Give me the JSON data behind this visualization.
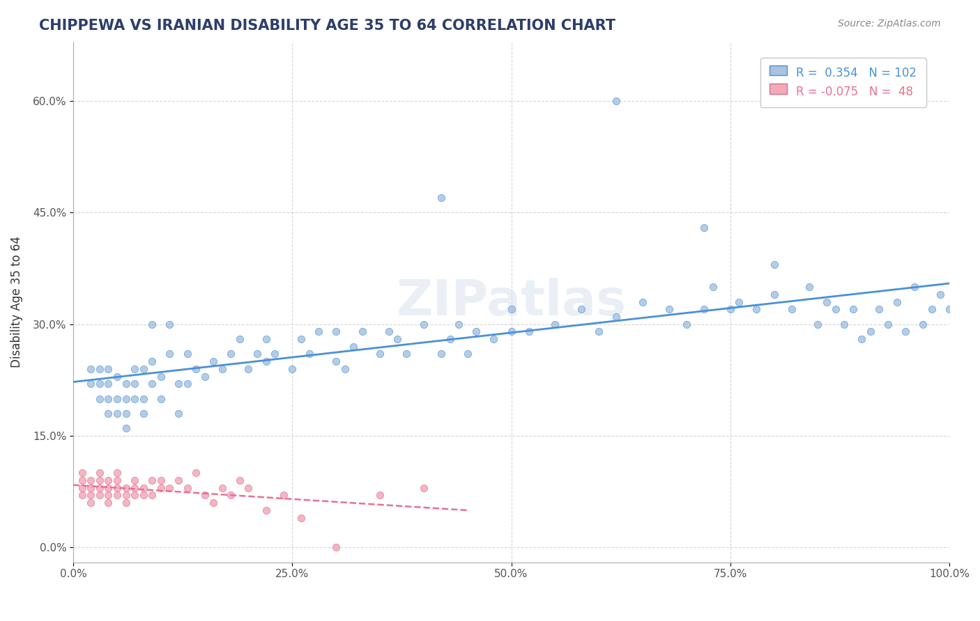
{
  "title": "CHIPPEWA VS IRANIAN DISABILITY AGE 35 TO 64 CORRELATION CHART",
  "source": "Source: ZipAtlas.com",
  "xlabel": "",
  "ylabel": "Disability Age 35 to 64",
  "xlim": [
    0,
    1.0
  ],
  "ylim": [
    -0.02,
    0.68
  ],
  "xticks": [
    0.0,
    0.25,
    0.5,
    0.75,
    1.0
  ],
  "xticklabels": [
    "0.0%",
    "25.0%",
    "50.0%",
    "75.0%",
    "100.0%"
  ],
  "yticks": [
    0.0,
    0.15,
    0.3,
    0.45,
    0.6
  ],
  "yticklabels": [
    "0.0%",
    "15.0%",
    "30.0%",
    "45.0%",
    "60.0%"
  ],
  "chippewa_color": "#a8c4e0",
  "iranian_color": "#f4a8b8",
  "chippewa_line_color": "#4a90d9",
  "iranian_line_color": "#e87090",
  "legend_r1": "R =  0.354   N = 102",
  "legend_r2": "R = -0.075   N =  48",
  "background_color": "#ffffff",
  "grid_color": "#cccccc",
  "watermark": "ZIPatlas",
  "title_color": "#2c3e6b",
  "chippewa_x": [
    0.02,
    0.02,
    0.03,
    0.03,
    0.03,
    0.04,
    0.04,
    0.04,
    0.04,
    0.05,
    0.05,
    0.05,
    0.06,
    0.06,
    0.06,
    0.06,
    0.07,
    0.07,
    0.07,
    0.08,
    0.08,
    0.08,
    0.09,
    0.09,
    0.09,
    0.1,
    0.1,
    0.11,
    0.11,
    0.12,
    0.12,
    0.13,
    0.13,
    0.14,
    0.15,
    0.16,
    0.17,
    0.18,
    0.19,
    0.2,
    0.21,
    0.22,
    0.22,
    0.23,
    0.25,
    0.26,
    0.27,
    0.28,
    0.3,
    0.3,
    0.31,
    0.32,
    0.33,
    0.35,
    0.36,
    0.37,
    0.38,
    0.4,
    0.42,
    0.43,
    0.44,
    0.45,
    0.46,
    0.48,
    0.5,
    0.5,
    0.52,
    0.55,
    0.58,
    0.6,
    0.62,
    0.65,
    0.68,
    0.7,
    0.72,
    0.73,
    0.75,
    0.76,
    0.78,
    0.8,
    0.82,
    0.84,
    0.85,
    0.86,
    0.87,
    0.88,
    0.89,
    0.9,
    0.91,
    0.92,
    0.93,
    0.94,
    0.95,
    0.96,
    0.97,
    0.98,
    0.99,
    1.0,
    0.62,
    0.42,
    0.72,
    0.8
  ],
  "chippewa_y": [
    0.22,
    0.24,
    0.2,
    0.22,
    0.24,
    0.2,
    0.22,
    0.18,
    0.24,
    0.18,
    0.2,
    0.23,
    0.16,
    0.18,
    0.2,
    0.22,
    0.2,
    0.22,
    0.24,
    0.18,
    0.2,
    0.24,
    0.22,
    0.25,
    0.3,
    0.2,
    0.23,
    0.26,
    0.3,
    0.18,
    0.22,
    0.22,
    0.26,
    0.24,
    0.23,
    0.25,
    0.24,
    0.26,
    0.28,
    0.24,
    0.26,
    0.28,
    0.25,
    0.26,
    0.24,
    0.28,
    0.26,
    0.29,
    0.25,
    0.29,
    0.24,
    0.27,
    0.29,
    0.26,
    0.29,
    0.28,
    0.26,
    0.3,
    0.26,
    0.28,
    0.3,
    0.26,
    0.29,
    0.28,
    0.29,
    0.32,
    0.29,
    0.3,
    0.32,
    0.29,
    0.31,
    0.33,
    0.32,
    0.3,
    0.32,
    0.35,
    0.32,
    0.33,
    0.32,
    0.34,
    0.32,
    0.35,
    0.3,
    0.33,
    0.32,
    0.3,
    0.32,
    0.28,
    0.29,
    0.32,
    0.3,
    0.33,
    0.29,
    0.35,
    0.3,
    0.32,
    0.34,
    0.32,
    0.6,
    0.47,
    0.43,
    0.38
  ],
  "iranian_x": [
    0.01,
    0.01,
    0.01,
    0.01,
    0.02,
    0.02,
    0.02,
    0.02,
    0.03,
    0.03,
    0.03,
    0.03,
    0.04,
    0.04,
    0.04,
    0.04,
    0.05,
    0.05,
    0.05,
    0.05,
    0.06,
    0.06,
    0.06,
    0.07,
    0.07,
    0.07,
    0.08,
    0.08,
    0.09,
    0.09,
    0.1,
    0.1,
    0.11,
    0.12,
    0.13,
    0.14,
    0.15,
    0.16,
    0.17,
    0.18,
    0.19,
    0.2,
    0.22,
    0.24,
    0.26,
    0.3,
    0.35,
    0.4
  ],
  "iranian_y": [
    0.07,
    0.08,
    0.09,
    0.1,
    0.06,
    0.07,
    0.08,
    0.09,
    0.07,
    0.08,
    0.09,
    0.1,
    0.06,
    0.07,
    0.08,
    0.09,
    0.07,
    0.08,
    0.09,
    0.1,
    0.06,
    0.07,
    0.08,
    0.07,
    0.08,
    0.09,
    0.07,
    0.08,
    0.07,
    0.09,
    0.08,
    0.09,
    0.08,
    0.09,
    0.08,
    0.1,
    0.07,
    0.06,
    0.08,
    0.07,
    0.09,
    0.08,
    0.05,
    0.07,
    0.04,
    0.0,
    0.07,
    0.08
  ]
}
